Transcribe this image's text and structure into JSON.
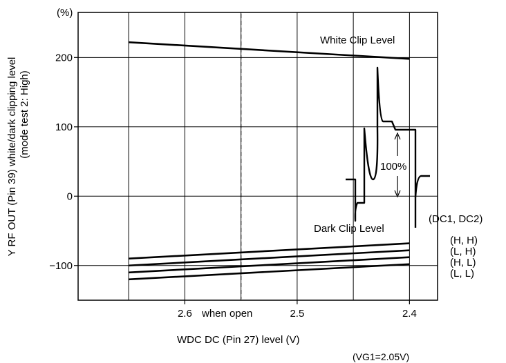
{
  "chart_data": {
    "type": "line",
    "y_unit": "(%)",
    "ylabel_line1": "Y RF OUT (Pin 39) white/dark clipping level",
    "ylabel_line2": "(mode test 2: High)",
    "xlabel": "WDC DC (Pin 27) level (V)",
    "footnote": "(VG1=2.05V)",
    "ylim": [
      -150,
      265
    ],
    "xlim": [
      2.695,
      2.375
    ],
    "grid": true,
    "y_ticks": [
      {
        "value": 200,
        "label": "200"
      },
      {
        "value": 100,
        "label": "100"
      },
      {
        "value": 0,
        "label": "0"
      },
      {
        "value": -100,
        "label": "−100"
      }
    ],
    "x_ticks": [
      {
        "value": 2.6,
        "label": "2.6"
      },
      {
        "value": 2.5,
        "label": "2.5"
      },
      {
        "value": 2.4,
        "label": "2.4"
      }
    ],
    "x_gridlines": [
      2.65,
      2.6,
      2.55,
      2.5,
      2.45,
      2.4
    ],
    "open_marker": {
      "x": 2.55,
      "label": "when open"
    },
    "series": [
      {
        "name": "White Clip Level",
        "x": [
          2.65,
          2.4
        ],
        "y": [
          222,
          198
        ]
      },
      {
        "name": "(H, H)",
        "x": [
          2.65,
          2.4
        ],
        "y": [
          -90,
          -68
        ]
      },
      {
        "name": "(L, H)",
        "x": [
          2.65,
          2.4
        ],
        "y": [
          -100,
          -78
        ]
      },
      {
        "name": "(H, L)",
        "x": [
          2.65,
          2.4
        ],
        "y": [
          -110,
          -88
        ]
      },
      {
        "name": "(L, L)",
        "x": [
          2.65,
          2.4
        ],
        "y": [
          -120,
          -98
        ]
      }
    ],
    "annotations": {
      "white_clip": "White Clip Level",
      "dark_clip": "Dark Clip Level",
      "percent": "100%",
      "legend_header": "(DC1, DC2)"
    }
  }
}
